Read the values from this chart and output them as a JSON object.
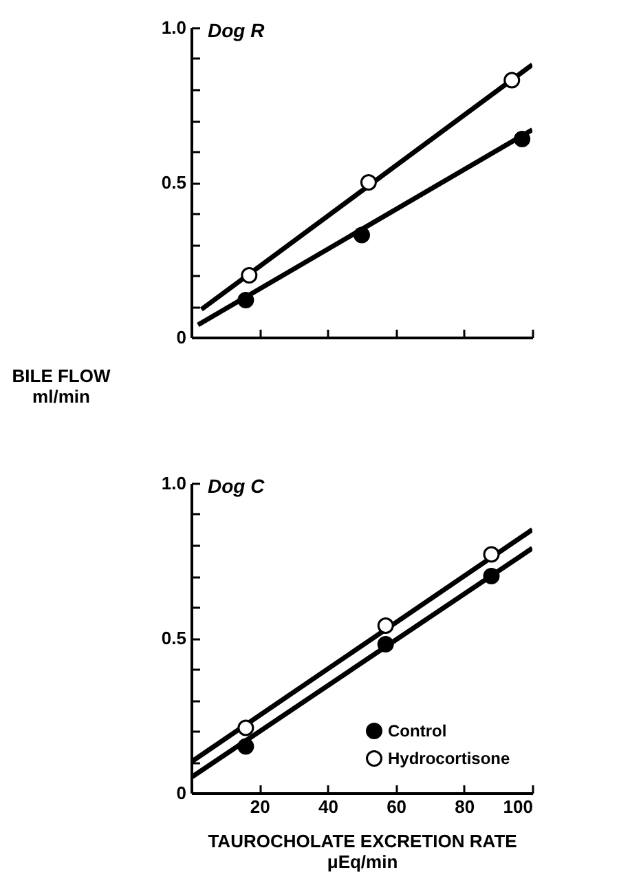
{
  "chart_data": [
    {
      "type": "line",
      "title": "Dog R",
      "ylabel": "BILE FLOW\nml/min",
      "xlim": [
        0,
        100
      ],
      "ylim": [
        0,
        1.0
      ],
      "xticks": [
        20,
        40,
        60,
        80,
        100
      ],
      "yticks": [
        0,
        {
          "value": 0.1,
          "label": null
        },
        {
          "value": 0.2,
          "label": null
        },
        {
          "value": 0.3,
          "label": null
        },
        {
          "value": 0.4,
          "label": null
        },
        {
          "value": 0.5,
          "label": "0.5"
        },
        {
          "value": 0.6,
          "label": null
        },
        {
          "value": 0.7,
          "label": null
        },
        {
          "value": 0.8,
          "label": null
        },
        {
          "value": 0.9,
          "label": null
        },
        {
          "value": 1.0,
          "label": "1.0"
        }
      ],
      "tick_labels": "y",
      "grid": false,
      "series": [
        {
          "color": "#000000",
          "x": [
            2,
            100
          ],
          "values": [
            0.04,
            0.67
          ]
        },
        {
          "color": "#000000",
          "x": [
            3,
            100
          ],
          "values": [
            0.09,
            0.88
          ]
        },
        {
          "type": "scatter",
          "marker": "circle",
          "color": "#000000",
          "x": [
            16,
            50,
            97
          ],
          "values": [
            0.12,
            0.33,
            0.64
          ]
        },
        {
          "type": "scatter",
          "marker": "circle",
          "color": "#ffffff",
          "x": [
            17,
            52,
            94
          ],
          "values": [
            0.2,
            0.5,
            0.83
          ]
        }
      ]
    },
    {
      "type": "line",
      "title": "Dog C",
      "xlabel": "TAUROCHOLATE EXCRETION RATE\nμEq/min",
      "xlim": [
        0,
        100
      ],
      "ylim": [
        0,
        1.0
      ],
      "xticks": [
        20,
        40,
        60,
        80,
        100
      ],
      "yticks": [
        0,
        {
          "value": 0.1,
          "label": null
        },
        {
          "value": 0.2,
          "label": null
        },
        {
          "value": 0.3,
          "label": null
        },
        {
          "value": 0.4,
          "label": null
        },
        {
          "value": 0.5,
          "label": "0.5"
        },
        {
          "value": 0.6,
          "label": null
        },
        {
          "value": 0.7,
          "label": null
        },
        {
          "value": 0.8,
          "label": null
        },
        {
          "value": 0.9,
          "label": null
        },
        {
          "value": 1.0,
          "label": "1.0"
        }
      ],
      "grid": false,
      "legend": "bottom right",
      "series": [
        {
          "color": "#000000",
          "x": [
            0,
            100
          ],
          "values": [
            0.05,
            0.79
          ]
        },
        {
          "color": "#000000",
          "x": [
            0,
            100
          ],
          "values": [
            0.1,
            0.85
          ]
        },
        {
          "name": "Control",
          "type": "scatter",
          "marker": "circle",
          "color": "#000000",
          "x": [
            16,
            57,
            88
          ],
          "values": [
            0.15,
            0.48,
            0.7
          ]
        },
        {
          "name": "Hydrocortisone",
          "type": "scatter",
          "marker": "circle",
          "color": "#ffffff",
          "x": [
            16,
            57,
            88
          ],
          "values": [
            0.21,
            0.54,
            0.77
          ]
        }
      ]
    }
  ]
}
